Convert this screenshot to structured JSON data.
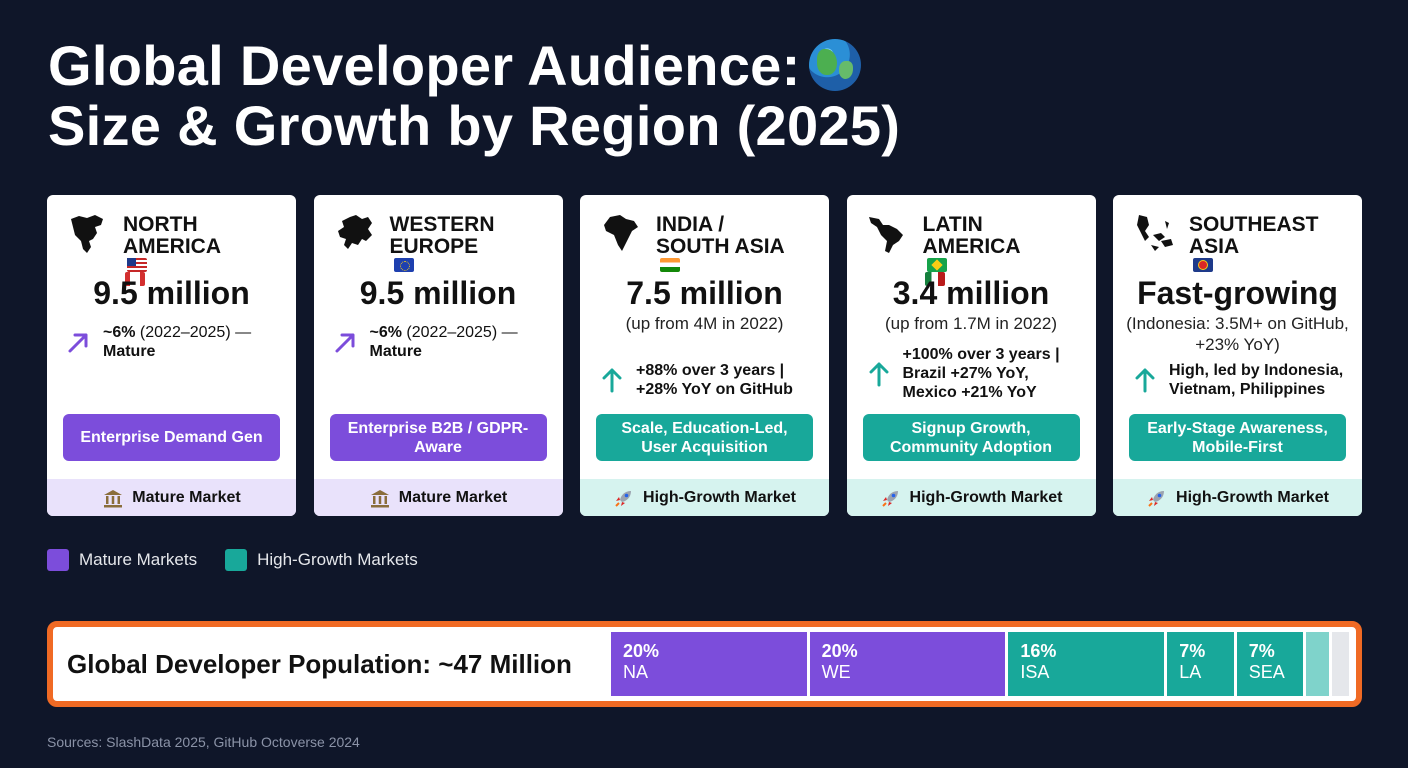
{
  "title": {
    "line1": "Global Developer Audience:",
    "line2": "Size & Growth by Region (2025)",
    "icon": "globe-icon"
  },
  "regions": [
    {
      "name1": "NORTH",
      "name2": "AMERICA",
      "flags": [
        "us",
        "ca"
      ],
      "size": "9.5 million",
      "detail": "",
      "growth_bold": "~6%",
      "growth_rest": " (2022–2025) —",
      "growth_line2": "Mature",
      "arrow": "diagonal-up-arrow-icon",
      "strategy": "Enterprise Demand Gen",
      "market_label": "Mature Market",
      "market_icon": "bank-icon",
      "type": "mature"
    },
    {
      "name1": "WESTERN",
      "name2": "EUROPE",
      "flags": [
        "eu"
      ],
      "size": "9.5 million",
      "detail": "",
      "growth_bold": "~6%",
      "growth_rest": " (2022–2025) —",
      "growth_line2": "Mature",
      "arrow": "diagonal-up-arrow-icon",
      "strategy": "Enterprise B2B / GDPR-Aware",
      "market_label": "Mature Market",
      "market_icon": "bank-icon",
      "type": "mature"
    },
    {
      "name1": "INDIA /",
      "name2": "SOUTH ASIA",
      "flags": [
        "in"
      ],
      "size": "7.5 million",
      "detail": "(up from 4M in 2022)",
      "growth_line1": "+88% over 3 years |",
      "growth_line2": "+28% YoY on GitHub",
      "arrow": "up-arrow-icon",
      "strategy": "Scale, Education-Led, User Acquisition",
      "market_label": "High-Growth Market",
      "market_icon": "rocket-icon",
      "type": "growth"
    },
    {
      "name1": "LATIN",
      "name2": "AMERICA",
      "flags": [
        "br",
        "mx"
      ],
      "size": "3.4 million",
      "detail": "(up from 1.7M in 2022)",
      "growth_line1": "+100% over 3 years |",
      "growth_line2": "Brazil +27% YoY,",
      "growth_line3": "Mexico +21% YoY",
      "arrow": "up-arrow-icon",
      "strategy": "Signup Growth, Community Adoption",
      "market_label": "High-Growth Market",
      "market_icon": "rocket-icon",
      "type": "growth"
    },
    {
      "name1": "SOUTHEAST",
      "name2": "ASIA",
      "flags": [
        "asean"
      ],
      "size": "Fast-growing",
      "detail": "(Indonesia: 3.5M+ on GitHub, +23% YoY)",
      "growth_line1": "High, led by Indonesia,",
      "growth_line2": "Vietnam, Philippines",
      "arrow": "up-arrow-icon",
      "strategy": "Early-Stage Awareness, Mobile-First",
      "market_label": "High-Growth Market",
      "market_icon": "rocket-icon",
      "type": "growth"
    }
  ],
  "legend": [
    {
      "label": "Mature Markets",
      "color": "#7c4ddb"
    },
    {
      "label": "High-Growth Markets",
      "color": "#18a89a"
    }
  ],
  "population": {
    "title": "Global Developer Population: ~47 Million",
    "segments": [
      {
        "pct_label": "20%",
        "label": "NA",
        "share": 20,
        "color": "#7c4ddb"
      },
      {
        "pct_label": "20%",
        "label": "WE",
        "share": 20,
        "color": "#7c4ddb"
      },
      {
        "pct_label": "16%",
        "label": "ISA",
        "share": 16,
        "color": "#18a89a"
      },
      {
        "pct_label": "7%",
        "label": "LA",
        "share": 7,
        "color": "#18a89a"
      },
      {
        "pct_label": "7%",
        "label": "SEA",
        "share": 7,
        "color": "#18a89a"
      },
      {
        "pct_label": "",
        "label": "",
        "share": 2.6,
        "color": "#7fd3cb"
      },
      {
        "pct_label": "",
        "label": "",
        "share": 2,
        "color": "#e5e7eb"
      }
    ]
  },
  "sources": "Sources: SlashData 2025, GitHub Octoverse 2024"
}
